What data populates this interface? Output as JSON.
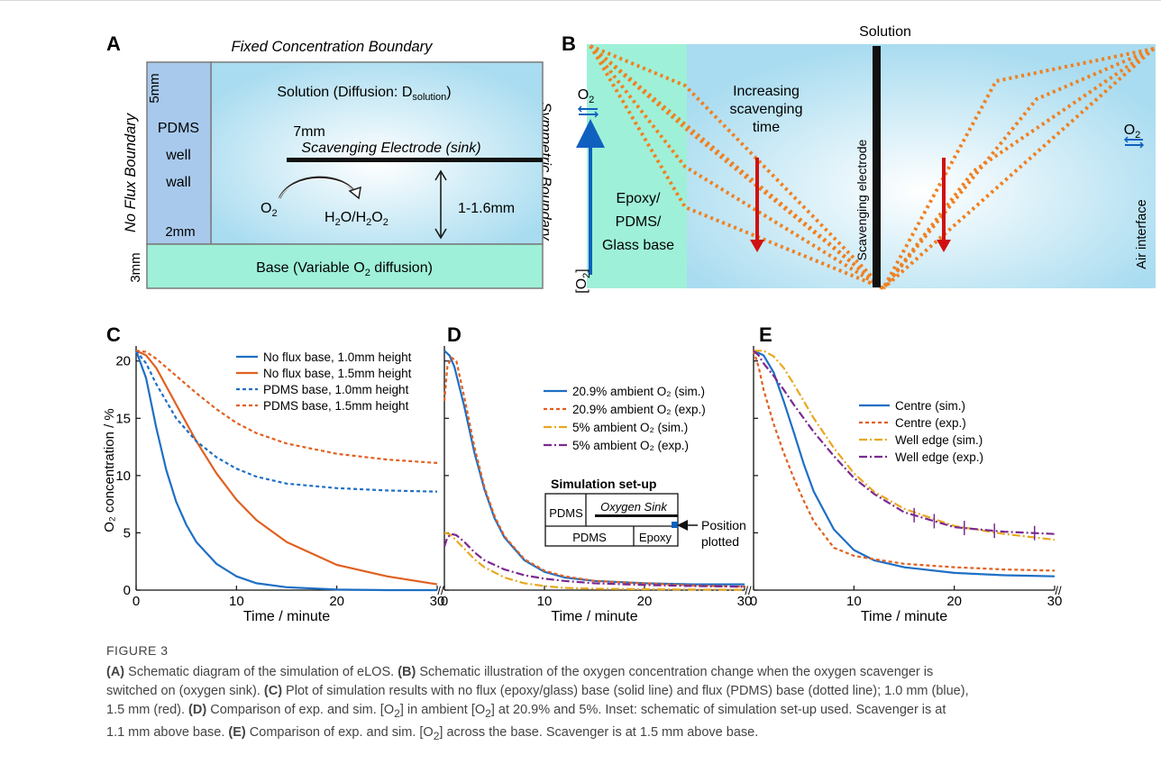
{
  "panel_letters": [
    "A",
    "B",
    "C",
    "D",
    "E"
  ],
  "panel_a": {
    "top_label": "Fixed Concentration Boundary",
    "left_label": "No Flux Boundary",
    "right_label": "Symmetric Boundary",
    "solution_label": "Solution (Diffusion: D",
    "solution_sub": "solution",
    "pdms_label": [
      "PDMS",
      "well",
      "wall"
    ],
    "dim_5mm": "5mm",
    "dim_2mm": "2mm",
    "dim_3mm": "3mm",
    "dim_7mm": "7mm",
    "electrode_label": "Scavenging Electrode (sink)",
    "reaction_from": "O",
    "reaction_to": "H",
    "gap_label": "1-1.6mm",
    "base_label": "Base (Variable O",
    "base_label_end": " diffusion)"
  },
  "panel_b": {
    "solution_label": "Solution",
    "increasing_label": [
      "Increasing",
      "scavenging",
      "time"
    ],
    "electrode_label": "Scavenging electrode",
    "air_label": "Air interface",
    "base_label": [
      "Epoxy/",
      "PDMS/",
      "Glass base"
    ],
    "o2": "O",
    "axis_label": "[O",
    "axis_label_end": "]"
  },
  "chart_data": [
    {
      "panel": "C",
      "type": "line",
      "ylabel": "O₂ concentration / %",
      "xlabel": "Time / minute",
      "xlim": [
        0,
        30
      ],
      "ylim": [
        0,
        21
      ],
      "xticks": [
        "0",
        "10",
        "20",
        "30"
      ],
      "yticks": [
        "0",
        "5",
        "10",
        "15",
        "20"
      ],
      "legend": "top-right",
      "series": [
        {
          "name": "No flux base, 1.0mm height",
          "color": "#1f6fc4",
          "style": "solid",
          "x": [
            0,
            1,
            2,
            3,
            4,
            5,
            6,
            8,
            10,
            12,
            15,
            20,
            25,
            30
          ],
          "y": [
            20.9,
            18.5,
            14.2,
            10.5,
            7.7,
            5.7,
            4.2,
            2.3,
            1.2,
            0.6,
            0.25,
            0.05,
            0,
            0
          ]
        },
        {
          "name": "No flux base, 1.5mm height",
          "color": "#e06020",
          "style": "solid",
          "x": [
            0,
            1,
            2,
            4,
            6,
            8,
            10,
            12,
            15,
            20,
            25,
            30
          ],
          "y": [
            20.9,
            20.5,
            19.4,
            16.2,
            13.0,
            10.2,
            7.9,
            6.1,
            4.2,
            2.2,
            1.2,
            0.5
          ]
        },
        {
          "name": "PDMS base, 1.0mm height",
          "color": "#1f6fc4",
          "style": "dashed",
          "x": [
            0,
            1,
            2,
            4,
            6,
            8,
            10,
            12,
            15,
            20,
            25,
            30
          ],
          "y": [
            20.9,
            19.8,
            18.0,
            15.0,
            13.0,
            11.6,
            10.6,
            9.9,
            9.3,
            8.9,
            8.7,
            8.6
          ]
        },
        {
          "name": "PDMS base, 1.5mm height",
          "color": "#e06020",
          "style": "dashed",
          "x": [
            0,
            1,
            2,
            4,
            6,
            8,
            10,
            12,
            15,
            20,
            25,
            30
          ],
          "y": [
            20.9,
            20.8,
            20.2,
            18.7,
            17.2,
            15.8,
            14.6,
            13.7,
            12.8,
            11.9,
            11.4,
            11.1
          ]
        }
      ]
    },
    {
      "panel": "D",
      "type": "line",
      "xlabel": "Time / minute",
      "xlim": [
        0,
        30
      ],
      "ylim": [
        0,
        21
      ],
      "xticks": [
        "0",
        "10",
        "20",
        "30"
      ],
      "legend": "top-right",
      "series": [
        {
          "name": "20.9% ambient O₂ (sim.)",
          "color": "#1f6fc4",
          "style": "solid",
          "x": [
            0,
            0.5,
            1,
            2,
            3,
            4,
            5,
            6,
            8,
            10,
            12,
            15,
            20,
            25,
            30
          ],
          "y": [
            20.9,
            20.5,
            19.5,
            16.0,
            12.0,
            8.8,
            6.3,
            4.6,
            2.6,
            1.6,
            1.1,
            0.8,
            0.6,
            0.5,
            0.5
          ]
        },
        {
          "name": "20.9% ambient O₂ (exp.)",
          "color": "#e06020",
          "style": "dashed",
          "x": [
            0,
            0.3,
            0.7,
            1.2,
            2,
            3,
            4,
            5,
            6,
            8,
            10,
            12,
            15,
            20,
            25,
            30
          ],
          "y": [
            16.5,
            19.5,
            20.3,
            20.0,
            16.8,
            12.5,
            9.0,
            6.5,
            4.7,
            2.7,
            1.7,
            1.2,
            0.8,
            0.6,
            0.4,
            0.3
          ]
        },
        {
          "name": "5% ambient O₂ (sim.)",
          "color": "#e8a820",
          "style": "dashdot",
          "x": [
            0,
            0.5,
            1,
            2,
            3,
            4,
            6,
            8,
            10,
            12,
            15,
            20,
            25,
            30
          ],
          "y": [
            5.0,
            4.9,
            4.5,
            3.6,
            2.7,
            2.0,
            1.1,
            0.6,
            0.35,
            0.2,
            0.12,
            0.08,
            0.05,
            0.03
          ]
        },
        {
          "name": "5% ambient O₂ (exp.)",
          "color": "#7a2a90",
          "style": "dashdot",
          "x": [
            0,
            0.3,
            0.7,
            1.2,
            2,
            3,
            4,
            6,
            8,
            10,
            12,
            15,
            20,
            25,
            30
          ],
          "y": [
            3.8,
            4.6,
            4.9,
            4.8,
            4.2,
            3.3,
            2.6,
            1.8,
            1.3,
            1.0,
            0.8,
            0.6,
            0.45,
            0.35,
            0.3
          ]
        }
      ],
      "inset": {
        "title": "Simulation set-up",
        "labels": [
          "PDMS",
          "Oxygen Sink",
          "PDMS",
          "Epoxy"
        ],
        "pointer": [
          "Position",
          "plotted"
        ]
      }
    },
    {
      "panel": "E",
      "type": "line",
      "xlabel": "Time / minute",
      "xlim": [
        0,
        30
      ],
      "ylim": [
        0,
        21
      ],
      "xticks": [
        "0",
        "10",
        "20",
        "30"
      ],
      "legend": "top-right",
      "series": [
        {
          "name": "Centre (sim.)",
          "color": "#1f6fc4",
          "style": "solid",
          "x": [
            0,
            1,
            2,
            3,
            4,
            5,
            6,
            8,
            10,
            12,
            15,
            20,
            25,
            30
          ],
          "y": [
            20.9,
            20.5,
            19.0,
            16.5,
            13.8,
            11.0,
            8.6,
            5.3,
            3.5,
            2.6,
            2.0,
            1.5,
            1.3,
            1.2
          ]
        },
        {
          "name": "Centre (exp.)",
          "color": "#e06020",
          "style": "dashed",
          "x": [
            0,
            0.5,
            1,
            2,
            3,
            4,
            5,
            6,
            8,
            10,
            12,
            15,
            20,
            25,
            30
          ],
          "y": [
            20.9,
            19.5,
            17.5,
            14.5,
            12.0,
            9.8,
            7.8,
            6.0,
            3.7,
            3.0,
            2.7,
            2.3,
            2.0,
            1.8,
            1.7
          ]
        },
        {
          "name": "Well edge (sim.)",
          "color": "#e8a820",
          "style": "dashdot",
          "x": [
            0,
            1,
            2,
            3,
            4,
            6,
            8,
            10,
            12,
            15,
            20,
            25,
            30
          ],
          "y": [
            20.9,
            20.9,
            20.4,
            19.4,
            18.0,
            15.0,
            12.4,
            10.2,
            8.6,
            7.1,
            5.6,
            4.9,
            4.4
          ]
        },
        {
          "name": "Well edge (exp.)",
          "color": "#7a2a90",
          "style": "dashdot",
          "x": [
            0,
            0.5,
            1,
            2,
            3,
            4,
            6,
            8,
            10,
            12,
            15,
            20,
            25,
            30
          ],
          "y": [
            20.9,
            20.5,
            19.8,
            18.7,
            17.5,
            16.2,
            13.8,
            11.7,
            9.8,
            8.4,
            6.8,
            5.5,
            5.1,
            4.9
          ]
        }
      ]
    }
  ],
  "caption": {
    "figure_label": "FIGURE 3",
    "lines": [
      [
        [
          "b",
          "(A)"
        ],
        [
          "t",
          " Schematic diagram of the simulation of eLOS. "
        ],
        [
          "b",
          "(B)"
        ],
        [
          "t",
          " Schematic illustration of the oxygen concentration change when the oxygen scavenger is"
        ]
      ],
      [
        [
          "t",
          "switched on (oxygen sink). "
        ],
        [
          "b",
          "(C)"
        ],
        [
          "t",
          " Plot of simulation results with no flux (epoxy/glass) base (solid line) and flux (PDMS) base (dotted line); 1.0 mm (blue),"
        ]
      ],
      [
        [
          "t",
          "1.5 mm (red). "
        ],
        [
          "b",
          "(D)"
        ],
        [
          "t",
          " Comparison of exp. and sim. [O"
        ],
        [
          "s",
          "2"
        ],
        [
          "t",
          "] in ambient [O"
        ],
        [
          "s",
          "2"
        ],
        [
          "t",
          "] at 20.9% and 5%. Inset: schematic of simulation set-up used. Scavenger is at"
        ]
      ],
      [
        [
          "t",
          "1.1 mm above base. "
        ],
        [
          "b",
          "(E)"
        ],
        [
          "t",
          " Comparison of exp. and sim. [O"
        ],
        [
          "s",
          "2"
        ],
        [
          "t",
          "] across the base. Scavenger is at 1.5 mm above base."
        ]
      ]
    ]
  }
}
